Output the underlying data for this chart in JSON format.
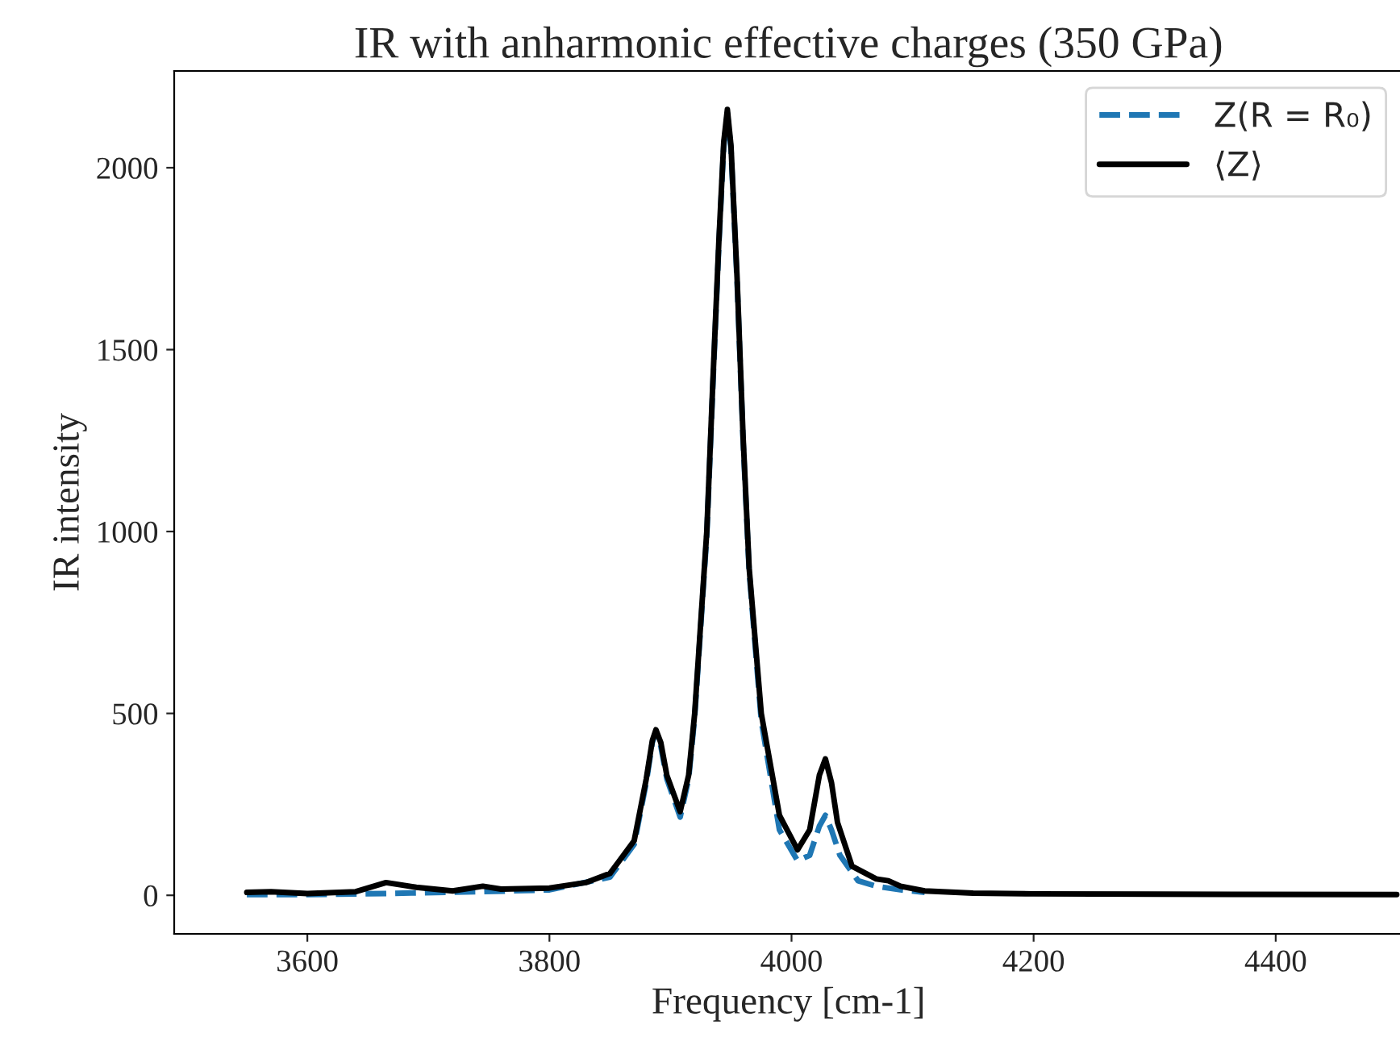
{
  "chart_data": {
    "type": "line",
    "title": "IR with anharmonic effective charges (350 GPa)",
    "xlabel": "Frequency [cm-1]",
    "ylabel": "IR intensity",
    "xlim": [
      3490,
      4505
    ],
    "xticks": [
      3600,
      3800,
      4000,
      4200,
      4400
    ],
    "ylim": [
      -106,
      2266
    ],
    "yticks": [
      0,
      500,
      1000,
      1500,
      2000
    ],
    "grid": false,
    "legend": "top right",
    "series": [
      {
        "name": "Z(R = R₀)",
        "color": "#1f77b4",
        "line_style": "dashed",
        "x": [
          3550,
          3600,
          3665,
          3745,
          3800,
          3850,
          3870,
          3880,
          3885,
          3888,
          3892,
          3897,
          3908,
          3915,
          3920,
          3930,
          3935,
          3940,
          3944,
          3947,
          3950,
          3955,
          3960,
          3965,
          3975,
          3990,
          4005,
          4015,
          4023,
          4028,
          4033,
          4040,
          4055,
          4070,
          4090,
          4110
        ],
        "values": [
          2,
          2,
          5,
          10,
          15,
          50,
          140,
          310,
          420,
          450,
          410,
          320,
          215,
          320,
          490,
          990,
          1400,
          1790,
          2060,
          2150,
          2050,
          1690,
          1250,
          890,
          480,
          180,
          95,
          110,
          190,
          220,
          180,
          110,
          40,
          25,
          15,
          8
        ]
      },
      {
        "name": "⟨Z⟩",
        "color": "#000000",
        "line_style": "solid",
        "x": [
          3550,
          3570,
          3600,
          3640,
          3665,
          3690,
          3720,
          3745,
          3760,
          3800,
          3830,
          3850,
          3870,
          3880,
          3885,
          3888,
          3892,
          3897,
          3908,
          3915,
          3920,
          3930,
          3935,
          3940,
          3944,
          3947,
          3950,
          3955,
          3960,
          3965,
          3975,
          3990,
          4005,
          4015,
          4023,
          4028,
          4033,
          4038,
          4050,
          4070,
          4080,
          4090,
          4110,
          4150,
          4200,
          4300,
          4500
        ],
        "values": [
          8,
          10,
          5,
          10,
          35,
          22,
          12,
          25,
          17,
          20,
          35,
          60,
          150,
          320,
          425,
          455,
          420,
          330,
          230,
          330,
          500,
          1000,
          1410,
          1800,
          2070,
          2160,
          2060,
          1700,
          1260,
          900,
          500,
          220,
          125,
          180,
          330,
          375,
          310,
          200,
          80,
          45,
          40,
          25,
          12,
          6,
          4,
          3,
          2
        ]
      }
    ]
  }
}
